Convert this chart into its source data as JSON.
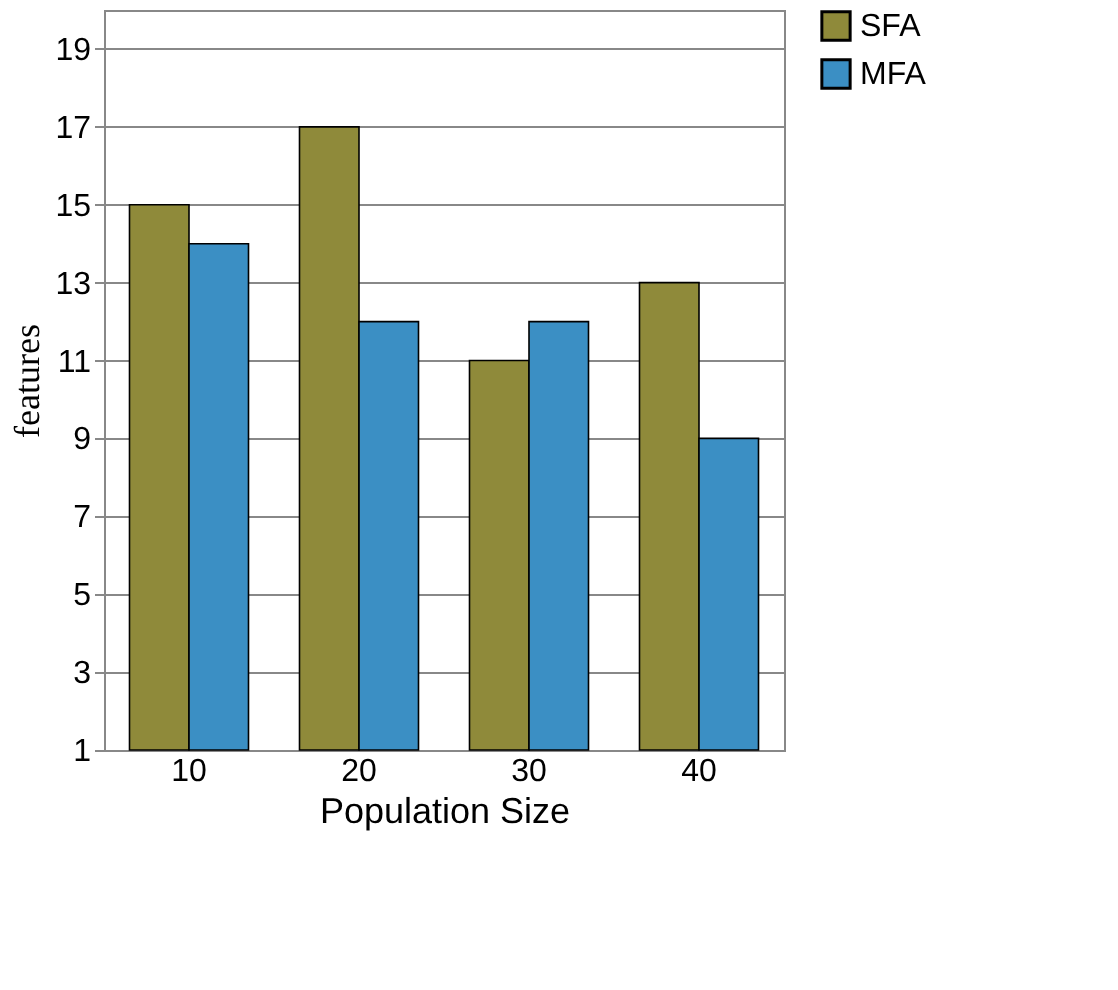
{
  "chart_data": {
    "type": "bar",
    "categories": [
      "10",
      "20",
      "30",
      "40"
    ],
    "series": [
      {
        "name": "SFA",
        "color": "#8f8a3a",
        "values": [
          15,
          17,
          11,
          13
        ]
      },
      {
        "name": "MFA",
        "color": "#3b8fc4",
        "values": [
          14,
          12,
          12,
          9
        ]
      }
    ],
    "xlabel": "Population Size",
    "ylabel": "features",
    "ylim": [
      1,
      20
    ],
    "yticks": [
      1,
      3,
      5,
      7,
      9,
      11,
      13,
      15,
      17,
      19
    ],
    "grid": "y",
    "legend": "right"
  }
}
